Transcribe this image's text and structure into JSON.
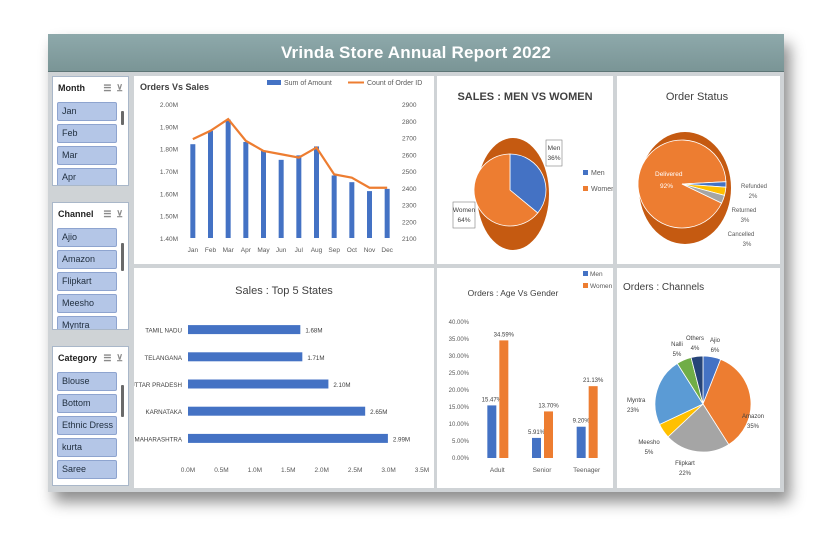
{
  "header": {
    "title": "Vrinda Store Annual Report 2022"
  },
  "slicers": {
    "month": {
      "title": "Month",
      "items": [
        "Jan",
        "Feb",
        "Mar",
        "Apr"
      ]
    },
    "channel": {
      "title": "Channel",
      "items": [
        "Ajio",
        "Amazon",
        "Flipkart",
        "Meesho",
        "Myntra"
      ]
    },
    "category": {
      "title": "Category",
      "items": [
        "Blouse",
        "Bottom",
        "Ethnic Dress",
        "kurta",
        "Saree"
      ]
    }
  },
  "chart_data": [
    {
      "type": "bar",
      "title": "Orders Vs Sales",
      "categories": [
        "Jan",
        "Feb",
        "Mar",
        "Apr",
        "May",
        "Jun",
        "Jul",
        "Aug",
        "Sep",
        "Oct",
        "Nov",
        "Dec"
      ],
      "series": [
        {
          "name": "Sum of Amount",
          "color": "#4472c4",
          "axis": "left",
          "values": [
            1.82,
            1.88,
            1.93,
            1.83,
            1.79,
            1.75,
            1.77,
            1.81,
            1.68,
            1.65,
            1.61,
            1.62
          ]
        },
        {
          "name": "Count of Order ID",
          "color": "#ed7d31",
          "type": "line",
          "axis": "right",
          "values": [
            2690,
            2740,
            2810,
            2680,
            2620,
            2600,
            2580,
            2640,
            2480,
            2460,
            2400,
            2400
          ]
        }
      ],
      "left_ticks": [
        "2.00M",
        "1.90M",
        "1.80M",
        "1.70M",
        "1.60M",
        "1.50M",
        "1.40M"
      ],
      "right_ticks": [
        "2900",
        "2800",
        "2700",
        "2600",
        "2500",
        "2400",
        "2300",
        "2200",
        "2100"
      ],
      "ylim": [
        1.4,
        2.0
      ],
      "ylim_right": [
        2100,
        2900
      ],
      "legend": "top"
    },
    {
      "type": "pie",
      "title": "SALES : MEN VS WOMEN",
      "labels": [
        "Men",
        "Women"
      ],
      "values": [
        36,
        64
      ],
      "value_labels": [
        "36%",
        "64%"
      ],
      "colors": [
        "#4472c4",
        "#ed7d31"
      ],
      "legend": "right"
    },
    {
      "type": "pie",
      "title": "Order Status",
      "labels": [
        "Delivered",
        "Refunded",
        "Returned",
        "Cancelled"
      ],
      "values": [
        92,
        2,
        3,
        3
      ],
      "value_labels": [
        "92%",
        "2%",
        "3%",
        "3%"
      ],
      "colors": [
        "#ed7d31",
        "#4472c4",
        "#ffc000",
        "#a5a5a5"
      ]
    },
    {
      "type": "bar",
      "orientation": "horizontal",
      "title": "Sales : Top 5 States",
      "categories": [
        "TAMIL NADU",
        "TELANGANA",
        "UTTAR PRADESH",
        "KARNATAKA",
        "MAHARASHTRA"
      ],
      "values": [
        1.68,
        1.71,
        2.1,
        2.65,
        2.99
      ],
      "value_labels": [
        "1.68M",
        "1.71M",
        "2.10M",
        "2.65M",
        "2.99M"
      ],
      "x_ticks": [
        "0.0M",
        "0.5M",
        "1.0M",
        "1.5M",
        "2.0M",
        "2.5M",
        "3.0M",
        "3.5M"
      ],
      "xlim": [
        0,
        3.5
      ]
    },
    {
      "type": "bar",
      "title": "Orders : Age Vs Gender",
      "categories": [
        "Adult",
        "Senior",
        "Teenager"
      ],
      "series": [
        {
          "name": "Men",
          "color": "#4472c4",
          "values": [
            15.47,
            5.91,
            9.2
          ],
          "value_labels": [
            "15.47%",
            "5.91%",
            "9.20%"
          ]
        },
        {
          "name": "Women",
          "color": "#ed7d31",
          "values": [
            34.59,
            13.7,
            21.13
          ],
          "value_labels": [
            "34.59%",
            "13.70%",
            "21.13%"
          ]
        }
      ],
      "y_ticks": [
        "40.00%",
        "35.00%",
        "30.00%",
        "25.00%",
        "20.00%",
        "15.00%",
        "10.00%",
        "5.00%",
        "0.00%"
      ],
      "ylim": [
        0,
        40
      ],
      "legend": "top-right"
    },
    {
      "type": "pie",
      "title": "Orders : Channels",
      "labels": [
        "Ajio",
        "Amazon",
        "Flipkart",
        "Meesho",
        "Myntra",
        "Nalli",
        "Others"
      ],
      "values": [
        6,
        35,
        22,
        5,
        23,
        5,
        4
      ],
      "value_labels": [
        "6%",
        "35%",
        "22%",
        "5%",
        "23%",
        "5%",
        "4%"
      ],
      "colors": [
        "#4472c4",
        "#ed7d31",
        "#a5a5a5",
        "#ffc000",
        "#5b9bd5",
        "#70ad47",
        "#264478"
      ]
    }
  ]
}
